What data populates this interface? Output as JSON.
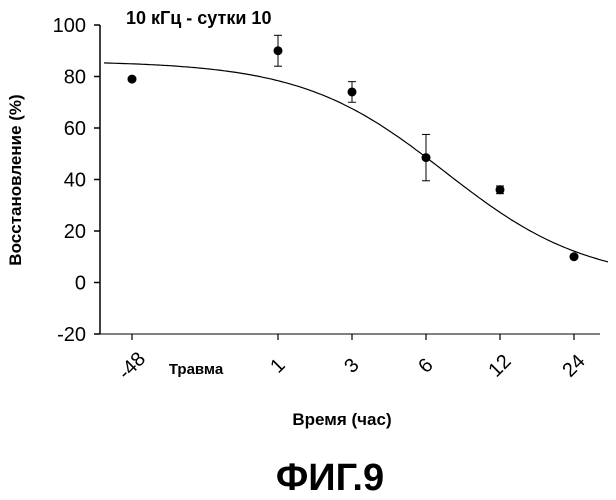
{
  "chart_data": {
    "type": "scatter",
    "title": "10 кГц - сутки 10",
    "xlabel": "Время (час)",
    "ylabel": "Восстановление (%)",
    "ylim": [
      -20,
      100
    ],
    "yticks": [
      "100",
      "80",
      "60",
      "40",
      "20",
      "0",
      "-20"
    ],
    "categories": [
      "-48",
      "Травма",
      "1",
      "3",
      "6",
      "12",
      "24"
    ],
    "points": [
      {
        "x": "-48",
        "y": 79,
        "err": 0
      },
      {
        "x": "1",
        "y": 90,
        "err": 6
      },
      {
        "x": "3",
        "y": 74,
        "err": 4
      },
      {
        "x": "6",
        "y": 48.5,
        "err": 9
      },
      {
        "x": "12",
        "y": 36,
        "err": 1.5
      },
      {
        "x": "24",
        "y": 10,
        "err": 0
      }
    ],
    "fit_curve": {
      "name": "sigmoid fit",
      "top": 86,
      "bottom": 0,
      "midpoint_hours": 6,
      "hill": 1.3
    }
  },
  "figure_label": "ФИГ.9"
}
